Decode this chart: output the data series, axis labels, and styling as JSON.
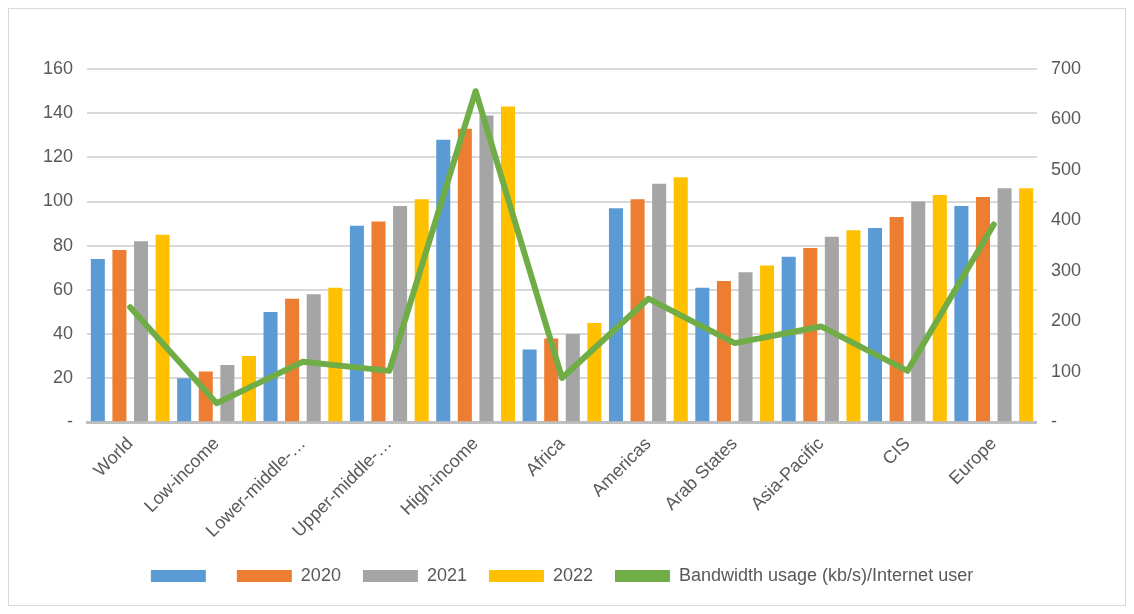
{
  "chart_data": {
    "type": "bar",
    "categories": [
      "World",
      "Low-income",
      "Lower-middle-…",
      "Upper-middle-…",
      "High-income",
      "Africa",
      "Americas",
      "Arab States",
      "Asia-Pacific",
      "CIS",
      "Europe"
    ],
    "series": [
      {
        "color": "#5b9bd5",
        "values": [
          74,
          20,
          50,
          89,
          128,
          33,
          97,
          61,
          75,
          88,
          98
        ]
      },
      {
        "name": "2020",
        "color": "#ed7d31",
        "values": [
          78,
          23,
          56,
          91,
          133,
          38,
          101,
          64,
          79,
          93,
          102
        ]
      },
      {
        "name": "2021",
        "color": "#a5a5a5",
        "values": [
          82,
          26,
          58,
          98,
          139,
          40,
          108,
          68,
          84,
          100,
          106
        ]
      },
      {
        "name": "2022",
        "color": "#ffc000",
        "values": [
          85,
          30,
          61,
          101,
          143,
          45,
          111,
          71,
          87,
          103,
          106
        ]
      },
      {
        "name": "Bandwidth usage (kb/s)/Internet user",
        "type": "line",
        "axis": "y2",
        "color": "#70ad47",
        "values": [
          228,
          38,
          120,
          102,
          656,
          88,
          245,
          157,
          190,
          102,
          392
        ]
      }
    ],
    "ylim": [
      0,
      160
    ],
    "yticks": [
      {
        "value": 0,
        "label": "-"
      },
      20,
      40,
      60,
      80,
      100,
      120,
      140,
      160
    ],
    "y2lim": [
      0,
      700
    ],
    "y2ticks": [
      {
        "value": 0,
        "label": "-"
      },
      100,
      200,
      300,
      400,
      500,
      600,
      700
    ],
    "grid": "y",
    "legend": "bottom",
    "marker": "none"
  }
}
